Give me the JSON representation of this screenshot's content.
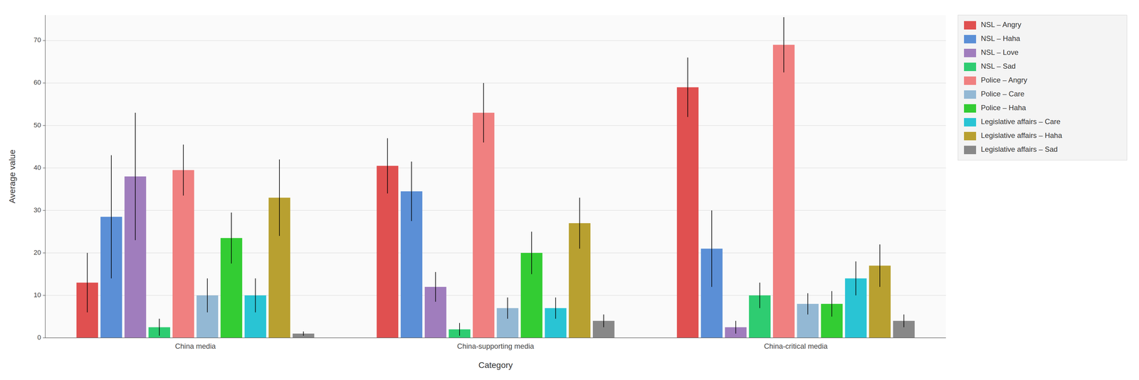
{
  "chart_data": {
    "type": "bar",
    "xlabel": "Category",
    "ylabel": "Average value",
    "categories": [
      "China media",
      "China-supporting media",
      "China-critical media"
    ],
    "series": [
      {
        "name": "NSL – Angry",
        "color": "#e05050",
        "values": [
          13.0,
          40.5,
          59.0
        ],
        "errors": [
          7.0,
          6.5,
          7.0
        ]
      },
      {
        "name": "NSL – Haha",
        "color": "#5b8fd6",
        "values": [
          28.5,
          34.5,
          21.0
        ],
        "errors": [
          14.5,
          7.0,
          9.0
        ]
      },
      {
        "name": "NSL – Love",
        "color": "#a07dbd",
        "values": [
          38.0,
          12.0,
          2.5
        ],
        "errors": [
          15.0,
          3.5,
          1.5
        ]
      },
      {
        "name": "NSL – Sad",
        "color": "#2ecc71",
        "values": [
          2.5,
          2.0,
          10.0
        ],
        "errors": [
          2.0,
          1.5,
          3.0
        ]
      },
      {
        "name": "Police – Angry",
        "color": "#f08080",
        "values": [
          39.5,
          53.0,
          69.0
        ],
        "errors": [
          6.0,
          7.0,
          6.5
        ]
      },
      {
        "name": "Police – Care",
        "color": "#93b8d4",
        "values": [
          10.0,
          7.0,
          8.0
        ],
        "errors": [
          4.0,
          2.5,
          2.5
        ]
      },
      {
        "name": "Police – Haha",
        "color": "#33cc33",
        "values": [
          23.5,
          20.0,
          8.0
        ],
        "errors": [
          6.0,
          5.0,
          3.0
        ]
      },
      {
        "name": "Legislative affairs – Care",
        "color": "#29c4d4",
        "values": [
          10.0,
          7.0,
          14.0
        ],
        "errors": [
          4.0,
          2.5,
          4.0
        ]
      },
      {
        "name": "Legislative affairs – Haha",
        "color": "#b8a030",
        "values": [
          33.0,
          27.0,
          17.0
        ],
        "errors": [
          9.0,
          6.0,
          5.0
        ]
      },
      {
        "name": "Legislative affairs – Sad",
        "color": "#888888",
        "values": [
          1.0,
          4.0,
          4.0
        ],
        "errors": [
          0.5,
          1.5,
          1.5
        ]
      }
    ],
    "ylim": [
      0,
      76
    ],
    "yticks": [
      0,
      10,
      20,
      30,
      40,
      50,
      60,
      70
    ],
    "grid": true,
    "legend": "right"
  }
}
